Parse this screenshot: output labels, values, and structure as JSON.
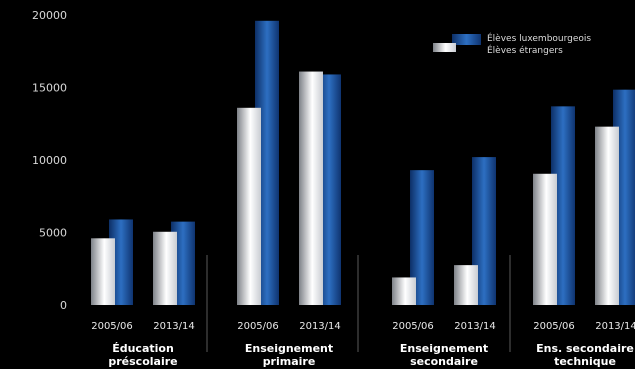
{
  "chart_data": {
    "type": "bar",
    "legend": [
      "Élèves luxembourgeois",
      "Élèves étrangers"
    ],
    "legend_position": "top-right",
    "ylim": [
      0,
      20000
    ],
    "yticks": [
      "0",
      "5000",
      "10000",
      "15000",
      "20000"
    ],
    "grid": false,
    "groups": [
      {
        "label_lines": [
          "Éducation",
          "préscolaire"
        ],
        "years": [
          {
            "label": "2005/06",
            "etrangers": 4600,
            "luxembourgeois": 5900
          },
          {
            "label": "2013/14",
            "etrangers": 5050,
            "luxembourgeois": 5750
          }
        ]
      },
      {
        "label_lines": [
          "Enseignement",
          "primaire"
        ],
        "years": [
          {
            "label": "2005/06",
            "etrangers": 13600,
            "luxembourgeois": 19600
          },
          {
            "label": "2013/14",
            "etrangers": 16100,
            "luxembourgeois": 15900
          }
        ]
      },
      {
        "label_lines": [
          "Enseignement",
          "secondaire"
        ],
        "years": [
          {
            "label": "2005/06",
            "etrangers": 1900,
            "luxembourgeois": 9300
          },
          {
            "label": "2013/14",
            "etrangers": 2750,
            "luxembourgeois": 10200
          }
        ]
      },
      {
        "label_lines": [
          "Ens. secondaire",
          "technique"
        ],
        "years": [
          {
            "label": "2005/06",
            "etrangers": 9050,
            "luxembourgeois": 13700
          },
          {
            "label": "2013/14",
            "etrangers": 12300,
            "luxembourgeois": 14850
          }
        ]
      }
    ],
    "colors": {
      "luxembourgeois": "#1f5aa6",
      "etrangers": "#ffffff"
    }
  }
}
